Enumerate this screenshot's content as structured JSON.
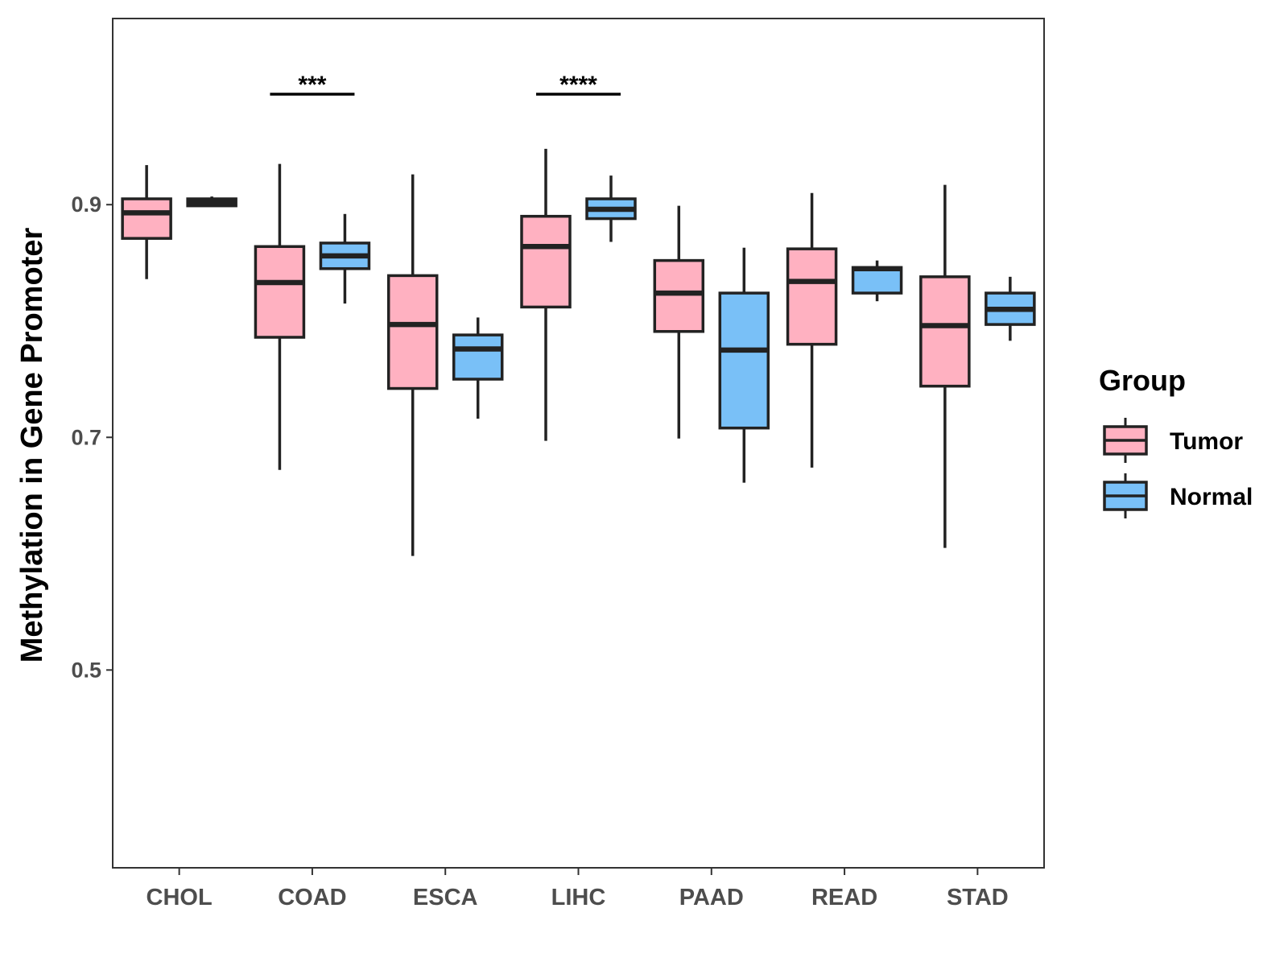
{
  "chart_data": {
    "type": "boxplot",
    "title": "",
    "xlabel": "",
    "ylabel": "Methylation in Gene Promoter",
    "ylim": [
      0.33,
      1.06
    ],
    "yticks": [
      0.5,
      0.7,
      0.9
    ],
    "ytick_labels": [
      "0.5",
      "0.7",
      "0.9"
    ],
    "categories": [
      "CHOL",
      "COAD",
      "ESCA",
      "LIHC",
      "PAAD",
      "READ",
      "STAD"
    ],
    "legend": {
      "title": "Group",
      "position": "right",
      "entries": [
        {
          "name": "Tumor",
          "color": "#ffb1c1"
        },
        {
          "name": "Normal",
          "color": "#79c0f7"
        }
      ]
    },
    "series": [
      {
        "name": "Tumor",
        "color": "#ffb1c1",
        "boxes": [
          {
            "category": "CHOL",
            "whisker_low": 0.836,
            "q1": 0.871,
            "median": 0.893,
            "q3": 0.905,
            "whisker_high": 0.934
          },
          {
            "category": "COAD",
            "whisker_low": 0.672,
            "q1": 0.786,
            "median": 0.833,
            "q3": 0.864,
            "whisker_high": 0.935
          },
          {
            "category": "ESCA",
            "whisker_low": 0.598,
            "q1": 0.742,
            "median": 0.797,
            "q3": 0.839,
            "whisker_high": 0.926
          },
          {
            "category": "LIHC",
            "whisker_low": 0.697,
            "q1": 0.812,
            "median": 0.864,
            "q3": 0.89,
            "whisker_high": 0.948
          },
          {
            "category": "PAAD",
            "whisker_low": 0.699,
            "q1": 0.791,
            "median": 0.824,
            "q3": 0.852,
            "whisker_high": 0.899
          },
          {
            "category": "READ",
            "whisker_low": 0.674,
            "q1": 0.78,
            "median": 0.834,
            "q3": 0.862,
            "whisker_high": 0.91
          },
          {
            "category": "STAD",
            "whisker_low": 0.605,
            "q1": 0.744,
            "median": 0.796,
            "q3": 0.838,
            "whisker_high": 0.917
          }
        ]
      },
      {
        "name": "Normal",
        "color": "#79c0f7",
        "boxes": [
          {
            "category": "CHOL",
            "whisker_low": 0.899,
            "q1": 0.899,
            "median": 0.902,
            "q3": 0.905,
            "whisker_high": 0.907
          },
          {
            "category": "COAD",
            "whisker_low": 0.815,
            "q1": 0.845,
            "median": 0.856,
            "q3": 0.867,
            "whisker_high": 0.892
          },
          {
            "category": "ESCA",
            "whisker_low": 0.716,
            "q1": 0.75,
            "median": 0.776,
            "q3": 0.788,
            "whisker_high": 0.803
          },
          {
            "category": "LIHC",
            "whisker_low": 0.868,
            "q1": 0.888,
            "median": 0.896,
            "q3": 0.905,
            "whisker_high": 0.925
          },
          {
            "category": "PAAD",
            "whisker_low": 0.661,
            "q1": 0.708,
            "median": 0.775,
            "q3": 0.824,
            "whisker_high": 0.863
          },
          {
            "category": "READ",
            "whisker_low": 0.817,
            "q1": 0.824,
            "median": 0.845,
            "q3": 0.846,
            "whisker_high": 0.852
          },
          {
            "category": "STAD",
            "whisker_low": 0.783,
            "q1": 0.797,
            "median": 0.81,
            "q3": 0.824,
            "whisker_high": 0.838
          }
        ]
      }
    ],
    "annotations": [
      {
        "category": "COAD",
        "label": "***",
        "y": 0.995
      },
      {
        "category": "LIHC",
        "label": "****",
        "y": 0.995
      }
    ]
  }
}
